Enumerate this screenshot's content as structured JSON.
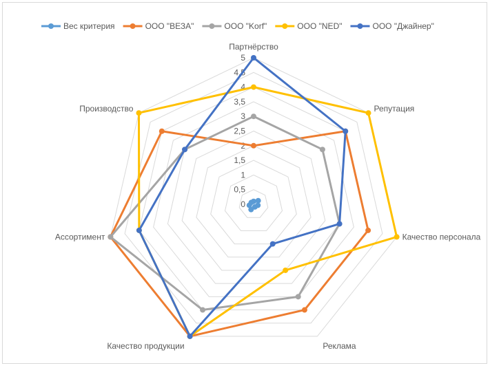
{
  "chart_data": {
    "type": "radar",
    "title": "",
    "legend_position": "top",
    "categories": [
      "Партнёрство",
      "Репутация",
      "Качество персонала",
      "Реклама",
      "Качество продукции",
      "Ассортимент",
      "Производство"
    ],
    "r_ticks": [
      "0",
      "0,5",
      "1",
      "1,5",
      "2",
      "2,5",
      "3",
      "3,5",
      "4",
      "4,5",
      "5"
    ],
    "r_range": [
      0,
      5
    ],
    "grid": true,
    "series": [
      {
        "name": "Вес критерия",
        "color": "#5B9BD5",
        "values": [
          0.1,
          0.2,
          0.15,
          0.1,
          0.2,
          0.15,
          0.1
        ]
      },
      {
        "name": "ООО \"ВЕЗА\"",
        "color": "#ED7D31",
        "values": [
          2,
          4,
          4,
          4,
          5,
          5,
          4
        ]
      },
      {
        "name": "ООО \"Korf\"",
        "color": "#A5A5A5",
        "values": [
          3,
          3,
          3,
          3.5,
          4,
          5,
          3
        ]
      },
      {
        "name": "ООО \"NED\"",
        "color": "#FFC000",
        "values": [
          4,
          5,
          5,
          2.5,
          5,
          4,
          5
        ]
      },
      {
        "name": "ООО \"Джайнер\"",
        "color": "#4472C4",
        "values": [
          5,
          4,
          3,
          1.5,
          5,
          4,
          3
        ]
      }
    ]
  }
}
